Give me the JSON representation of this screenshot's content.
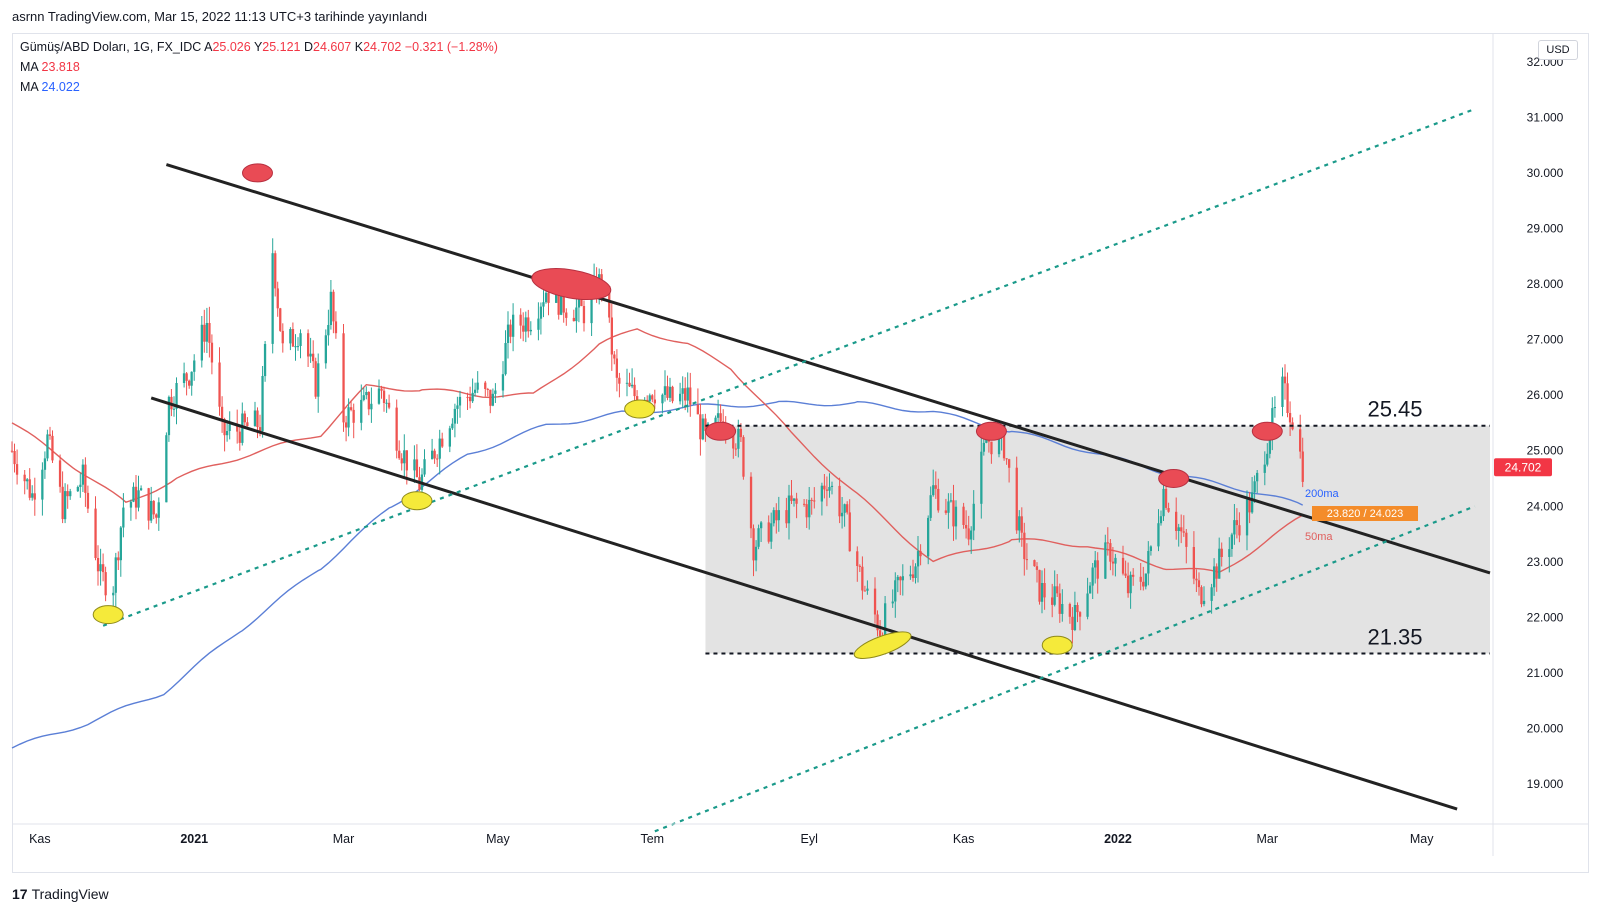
{
  "caption": "asrnn TradingView.com, Mar 15, 2022 11:13 UTC+3 tarihinde yayınlandı",
  "legend": {
    "symbol": "Gümüş/ABD Doları, 1G, FX_IDC",
    "open_label": "A",
    "open": "25.026",
    "high_label": "Y",
    "high": "25.121",
    "low_label": "D",
    "low": "24.607",
    "close_label": "K",
    "close": "24.702",
    "change": "−0.321 (−1.28%)",
    "ma1_label": "MA",
    "ma1_value": "23.818",
    "ma2_label": "MA",
    "ma2_value": "24.022"
  },
  "currency": "USD",
  "footer": {
    "logo_mark": "17",
    "logo_text": "TradingView"
  },
  "chart_data": {
    "type": "candlestick",
    "x_ticks": [
      "Kas",
      "2021",
      "Mar",
      "May",
      "Tem",
      "Eyl",
      "Kas",
      "2022",
      "Mar",
      "May"
    ],
    "x_tick_dates": [
      "2020-11-01",
      "2021-01-01",
      "2021-03-01",
      "2021-05-01",
      "2021-07-01",
      "2021-09-01",
      "2021-11-01",
      "2022-01-01",
      "2022-03-01",
      "2022-05-01"
    ],
    "y_ticks": [
      "32.000",
      "31.000",
      "30.000",
      "29.000",
      "28.000",
      "27.000",
      "26.000",
      "25.000",
      "24.000",
      "23.000",
      "22.000",
      "21.000",
      "20.000",
      "19.000"
    ],
    "ylim": [
      18.3,
      32.5
    ],
    "xlim": [
      "2020-10-21",
      "2022-05-28"
    ],
    "last_price_label": "24.702",
    "ma_labels": {
      "ma200": "200ma",
      "ma50": "50ma",
      "value_box": "23.820 / 24.023"
    },
    "levels": [
      {
        "label": "25.45",
        "value": 25.45
      },
      {
        "label": "21.35",
        "value": 21.35
      }
    ],
    "range_box": {
      "from": "2021-07-22",
      "to": "2022-05-28",
      "low": 21.35,
      "high": 25.45
    },
    "channel_lines": [
      {
        "from": [
          "2020-12-21",
          30.15
        ],
        "to": [
          "2022-05-28",
          22.8
        ]
      },
      {
        "from": [
          "2020-12-15",
          25.95
        ],
        "to": [
          "2022-05-15",
          18.55
        ]
      }
    ],
    "trend_lines": [
      {
        "from": [
          "2020-11-26",
          21.85
        ],
        "to": [
          "2022-05-22",
          31.15
        ]
      },
      {
        "from": [
          "2021-07-02",
          18.15
        ],
        "to": [
          "2022-05-22",
          24.0
        ]
      }
    ],
    "candles_key": [
      [
        "2020-10-21",
        25.0
      ],
      [
        "2020-10-29",
        24.2
      ],
      [
        "2020-11-04",
        25.2
      ],
      [
        "2020-11-10",
        24.0
      ],
      [
        "2020-11-18",
        24.5
      ],
      [
        "2020-11-25",
        22.7
      ],
      [
        "2020-11-30",
        22.6
      ],
      [
        "2020-12-04",
        24.0
      ],
      [
        "2020-12-10",
        24.2
      ],
      [
        "2020-12-17",
        23.8
      ],
      [
        "2020-12-22",
        25.9
      ],
      [
        "2020-12-30",
        26.4
      ],
      [
        "2021-01-06",
        27.3
      ],
      [
        "2021-01-12",
        25.3
      ],
      [
        "2021-01-20",
        25.4
      ],
      [
        "2021-01-27",
        25.5
      ],
      [
        "2021-02-01",
        28.6
      ],
      [
        "2021-02-05",
        26.8
      ],
      [
        "2021-02-12",
        27.2
      ],
      [
        "2021-02-18",
        26.2
      ],
      [
        "2021-02-24",
        27.7
      ],
      [
        "2021-03-01",
        25.6
      ],
      [
        "2021-03-09",
        25.8
      ],
      [
        "2021-03-16",
        26.1
      ],
      [
        "2021-03-24",
        25.0
      ],
      [
        "2021-03-31",
        24.4
      ],
      [
        "2021-04-07",
        25.1
      ],
      [
        "2021-04-14",
        25.8
      ],
      [
        "2021-04-22",
        26.1
      ],
      [
        "2021-04-29",
        25.9
      ],
      [
        "2021-05-06",
        27.2
      ],
      [
        "2021-05-14",
        27.4
      ],
      [
        "2021-05-20",
        27.9
      ],
      [
        "2021-05-28",
        27.6
      ],
      [
        "2021-06-04",
        27.5
      ],
      [
        "2021-06-11",
        28.1
      ],
      [
        "2021-06-17",
        26.2
      ],
      [
        "2021-06-24",
        26.0
      ],
      [
        "2021-07-01",
        26.1
      ],
      [
        "2021-07-09",
        25.9
      ],
      [
        "2021-07-15",
        26.0
      ],
      [
        "2021-07-22",
        25.2
      ],
      [
        "2021-07-29",
        25.6
      ],
      [
        "2021-08-05",
        25.1
      ],
      [
        "2021-08-10",
        23.3
      ],
      [
        "2021-08-18",
        23.7
      ],
      [
        "2021-08-25",
        24.0
      ],
      [
        "2021-09-02",
        24.0
      ],
      [
        "2021-09-08",
        24.5
      ],
      [
        "2021-09-15",
        23.8
      ],
      [
        "2021-09-22",
        22.6
      ],
      [
        "2021-09-29",
        21.8
      ],
      [
        "2021-10-06",
        22.5
      ],
      [
        "2021-10-13",
        23.0
      ],
      [
        "2021-10-20",
        24.3
      ],
      [
        "2021-10-27",
        23.9
      ],
      [
        "2021-11-03",
        23.6
      ],
      [
        "2021-11-10",
        25.2
      ],
      [
        "2021-11-17",
        25.1
      ],
      [
        "2021-11-24",
        23.3
      ],
      [
        "2021-12-01",
        22.5
      ],
      [
        "2021-12-08",
        22.3
      ],
      [
        "2021-12-15",
        22.0
      ],
      [
        "2021-12-22",
        22.8
      ],
      [
        "2021-12-29",
        23.2
      ],
      [
        "2022-01-05",
        22.5
      ],
      [
        "2022-01-12",
        22.8
      ],
      [
        "2022-01-19",
        24.3
      ],
      [
        "2022-01-26",
        23.5
      ],
      [
        "2022-02-02",
        22.4
      ],
      [
        "2022-02-09",
        22.9
      ],
      [
        "2022-02-16",
        23.6
      ],
      [
        "2022-02-23",
        24.1
      ],
      [
        "2022-03-01",
        25.2
      ],
      [
        "2022-03-07",
        26.1
      ],
      [
        "2022-03-11",
        25.6
      ],
      [
        "2022-03-15",
        24.7
      ]
    ],
    "ma200_key": [
      [
        "2020-10-21",
        19.65
      ],
      [
        "2020-11-20",
        20.1
      ],
      [
        "2020-12-20",
        20.65
      ],
      [
        "2021-01-20",
        21.8
      ],
      [
        "2021-02-20",
        22.9
      ],
      [
        "2021-03-20",
        24.0
      ],
      [
        "2021-04-20",
        24.95
      ],
      [
        "2021-05-20",
        25.45
      ],
      [
        "2021-06-20",
        25.68
      ],
      [
        "2021-07-20",
        25.8
      ],
      [
        "2021-08-20",
        25.85
      ],
      [
        "2021-09-20",
        25.85
      ],
      [
        "2021-10-20",
        25.7
      ],
      [
        "2021-11-20",
        25.35
      ],
      [
        "2021-12-20",
        25.0
      ],
      [
        "2022-01-20",
        24.6
      ],
      [
        "2022-02-20",
        24.3
      ],
      [
        "2022-03-15",
        24.02
      ]
    ],
    "ma50_key": [
      [
        "2020-10-21",
        25.5
      ],
      [
        "2020-11-15",
        24.7
      ],
      [
        "2020-12-05",
        24.05
      ],
      [
        "2020-12-25",
        24.5
      ],
      [
        "2021-01-20",
        24.9
      ],
      [
        "2021-02-20",
        25.3
      ],
      [
        "2021-03-10",
        26.15
      ],
      [
        "2021-04-01",
        26.1
      ],
      [
        "2021-04-25",
        26.0
      ],
      [
        "2021-05-15",
        26.0
      ],
      [
        "2021-06-10",
        26.9
      ],
      [
        "2021-06-25",
        27.2
      ],
      [
        "2021-07-15",
        26.9
      ],
      [
        "2021-08-01",
        26.5
      ],
      [
        "2021-08-25",
        25.3
      ],
      [
        "2021-09-20",
        24.2
      ],
      [
        "2021-10-20",
        23.0
      ],
      [
        "2021-11-20",
        23.4
      ],
      [
        "2021-12-20",
        23.3
      ],
      [
        "2022-01-20",
        22.9
      ],
      [
        "2022-02-10",
        22.8
      ],
      [
        "2022-03-15",
        23.82
      ]
    ],
    "markers": [
      {
        "color": "red",
        "at": [
          "2021-01-26",
          30.0
        ]
      },
      {
        "color": "red",
        "at": [
          "2021-05-30",
          28.0
        ]
      },
      {
        "color": "red",
        "at": [
          "2021-07-28",
          25.35
        ]
      },
      {
        "color": "red",
        "at": [
          "2021-11-12",
          25.35
        ]
      },
      {
        "color": "red",
        "at": [
          "2022-01-23",
          24.5
        ]
      },
      {
        "color": "red",
        "at": [
          "2022-03-01",
          25.35
        ]
      },
      {
        "color": "yellow",
        "at": [
          "2020-11-28",
          22.05
        ]
      },
      {
        "color": "yellow",
        "at": [
          "2021-03-30",
          24.1
        ]
      },
      {
        "color": "yellow",
        "at": [
          "2021-06-26",
          25.75
        ]
      },
      {
        "color": "yellow",
        "at": [
          "2021-09-30",
          21.5
        ]
      },
      {
        "color": "yellow",
        "at": [
          "2021-12-08",
          21.5
        ]
      }
    ]
  }
}
